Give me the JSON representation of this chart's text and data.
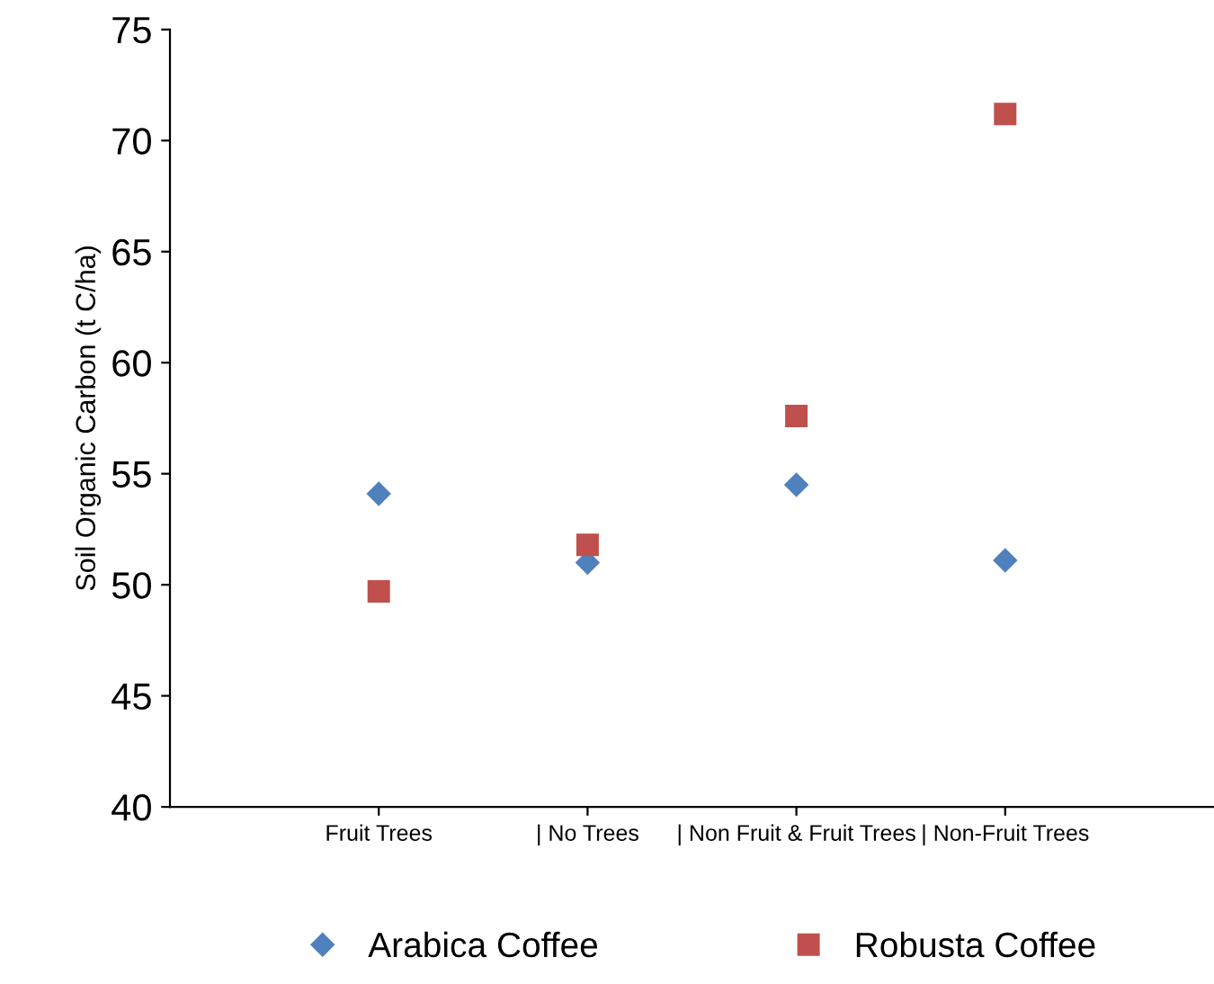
{
  "chart_data": {
    "type": "scatter",
    "ylabel": "Soil Organic Carbon (t C/ha)",
    "categories": [
      "Fruit Trees",
      "| No Trees",
      "| Non Fruit & Fruit Trees",
      "| Non-Fruit Trees"
    ],
    "series": [
      {
        "name": "Arabica Coffee",
        "color": "#4f81bd",
        "marker": "diamond",
        "values": [
          54.1,
          51.0,
          54.5,
          51.1
        ]
      },
      {
        "name": "Robusta Coffee",
        "color": "#c0504d",
        "marker": "square",
        "values": [
          49.7,
          51.8,
          57.6,
          71.2
        ]
      }
    ],
    "ylim": [
      40,
      75
    ],
    "yticks": [
      40,
      45,
      50,
      55,
      60,
      65,
      70,
      75
    ],
    "grid": false,
    "legend": "bottom"
  }
}
